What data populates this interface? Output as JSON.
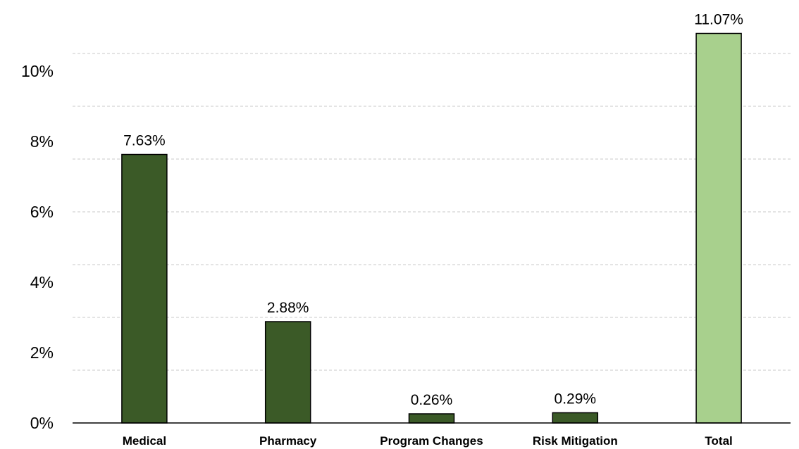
{
  "chart_data": {
    "type": "bar",
    "categories": [
      "Medical",
      "Pharmacy",
      "Program Changes",
      "Risk Mitigation",
      "Total"
    ],
    "values": [
      7.63,
      2.88,
      0.26,
      0.29,
      11.07
    ],
    "data_labels": [
      "7.63%",
      "2.88%",
      "0.26%",
      "0.29%",
      "11.07%"
    ],
    "title": "",
    "xlabel": "",
    "ylabel": "",
    "ylim": [
      0,
      11.5
    ],
    "yticks": [
      0,
      2,
      4,
      6,
      8,
      10
    ],
    "ytick_labels": [
      "0%",
      "2%",
      "4%",
      "6%",
      "8%",
      "10%"
    ],
    "grid_values": [
      0,
      1.5,
      3,
      4.5,
      6,
      7.5,
      9,
      10.5
    ],
    "grid": true,
    "legend": "none",
    "colors": {
      "component": "#3b5a27",
      "total": "#a8d08d",
      "grid": "#c8c8c8"
    }
  }
}
